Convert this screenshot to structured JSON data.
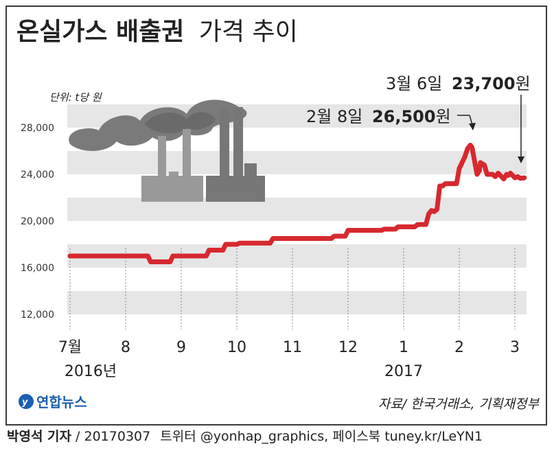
{
  "title": {
    "bold": "온실가스 배출권",
    "light": "가격 추이"
  },
  "unit": "단위: t당 원",
  "source": "자료/ 한국거래소, 기획재정부",
  "logo_text": "연합뉴스",
  "footer": {
    "reporter": "박영석 기자",
    "sep": " / ",
    "date": "20170307",
    "twitter": "트위터 @yonhap_graphics,",
    "facebook": "페이스북 tuney.kr/LeYN1"
  },
  "annotations": [
    {
      "date_text": "3월 6일",
      "value_text": "23,700",
      "suffix": "원"
    },
    {
      "date_text": "2월 8일",
      "value_text": "26,500",
      "suffix": "원"
    }
  ],
  "colors": {
    "line": "#d7282f",
    "band": "#e6e6e6",
    "text": "#222222",
    "logo": "#1a5fb4"
  },
  "chart_data": {
    "type": "line",
    "title": "온실가스 배출권 가격 추이",
    "ylabel": "단위: t당 원",
    "ylim": [
      10000,
      30000
    ],
    "yticks": [
      12000,
      16000,
      20000,
      24000,
      28000
    ],
    "ytick_labels": [
      "12,000",
      "16,000",
      "20,000",
      "24,000",
      "28,000"
    ],
    "xtick_labels": [
      "7월",
      "8",
      "9",
      "10",
      "11",
      "12",
      "1",
      "2",
      "3"
    ],
    "year_labels": [
      {
        "label": "2016년",
        "under": "7월"
      },
      {
        "label": "2017",
        "under": "1"
      }
    ],
    "x_unit": "month index from July 2016",
    "series": [
      {
        "x": [
          0.0,
          1.4,
          1.45,
          1.8,
          1.85,
          2.45,
          2.5,
          2.75,
          2.8,
          3.0,
          3.05,
          3.6,
          3.65,
          4.7,
          4.75,
          4.95,
          5.0,
          5.6,
          5.65,
          5.85,
          5.9,
          6.2,
          6.25,
          6.4,
          6.45,
          6.5,
          6.55,
          6.6,
          6.65,
          6.7,
          6.75,
          6.95,
          7.0,
          7.1,
          7.15,
          7.2,
          7.23,
          7.28,
          7.32,
          7.36,
          7.38,
          7.45,
          7.5,
          7.6,
          7.65,
          7.7,
          7.8,
          7.85,
          7.88,
          7.92,
          8.0,
          8.05,
          8.1,
          8.17
        ],
        "y": [
          17000,
          17000,
          16500,
          16500,
          17000,
          17000,
          17500,
          17500,
          18000,
          18000,
          18100,
          18100,
          18500,
          18500,
          18700,
          18700,
          19200,
          19200,
          19300,
          19300,
          19500,
          19500,
          19700,
          19700,
          20600,
          20900,
          20800,
          21000,
          23000,
          23000,
          23200,
          23200,
          24500,
          25500,
          26200,
          26500,
          26300,
          25000,
          24000,
          24300,
          25000,
          24800,
          24000,
          24000,
          23800,
          24100,
          23600,
          24000,
          23900,
          24100,
          23700,
          23800,
          23650,
          23700
        ]
      }
    ]
  }
}
